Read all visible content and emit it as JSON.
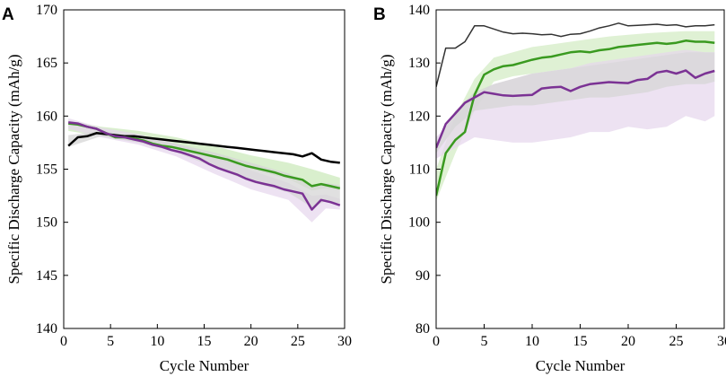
{
  "chart_data": [
    {
      "panel": "A",
      "type": "line",
      "xlabel": "Cycle Number",
      "ylabel": "Specific Discharge Capacity (mAh/g)",
      "xlim": [
        0,
        30
      ],
      "ylim": [
        140,
        170
      ],
      "xticks": [
        0,
        5,
        10,
        15,
        20,
        25,
        30
      ],
      "yticks": [
        140,
        145,
        150,
        155,
        160,
        165,
        170
      ],
      "grid": false,
      "legend": "none",
      "series": [
        {
          "name": "black",
          "color": "#000000",
          "x": [
            0.5,
            1.5,
            2.5,
            3.5,
            4.5,
            5.5,
            6.5,
            7.5,
            8.5,
            9.5,
            10.5,
            11.5,
            12.5,
            13.5,
            14.5,
            15.5,
            16.5,
            17.5,
            18.5,
            19.5,
            20.5,
            21.5,
            22.5,
            23.5,
            24.5,
            25.5,
            26.5,
            27.5,
            28.5,
            29.5
          ],
          "y": [
            157.2,
            158.0,
            158.1,
            158.4,
            158.3,
            158.2,
            158.1,
            158.1,
            158.0,
            157.9,
            157.8,
            157.7,
            157.6,
            157.5,
            157.4,
            157.3,
            157.2,
            157.1,
            157.0,
            156.9,
            156.8,
            156.7,
            156.6,
            156.5,
            156.4,
            156.2,
            156.5,
            155.9,
            155.7,
            155.6
          ]
        },
        {
          "name": "green",
          "color": "#3a9a20",
          "x": [
            0.5,
            1.5,
            2.5,
            3.5,
            4.5,
            5.5,
            6.5,
            7.5,
            8.5,
            9.5,
            10.5,
            11.5,
            12.5,
            13.5,
            14.5,
            15.5,
            16.5,
            17.5,
            18.5,
            19.5,
            20.5,
            21.5,
            22.5,
            23.5,
            24.5,
            25.5,
            26.5,
            27.5,
            28.5,
            29.5
          ],
          "y": [
            159.3,
            159.2,
            159.0,
            158.8,
            158.4,
            158.0,
            158.0,
            157.9,
            157.7,
            157.4,
            157.2,
            157.1,
            156.9,
            156.7,
            156.5,
            156.3,
            156.1,
            155.9,
            155.6,
            155.3,
            155.1,
            154.9,
            154.7,
            154.4,
            154.2,
            154.0,
            153.4,
            153.6,
            153.4,
            153.2
          ]
        },
        {
          "name": "purple",
          "color": "#7b3294",
          "x": [
            0.5,
            1.5,
            2.5,
            3.5,
            4.5,
            5.5,
            6.5,
            7.5,
            8.5,
            9.5,
            10.5,
            11.5,
            12.5,
            13.5,
            14.5,
            15.5,
            16.5,
            17.5,
            18.5,
            19.5,
            20.5,
            21.5,
            22.5,
            23.5,
            24.5,
            25.5,
            26.5,
            27.5,
            28.5,
            29.5
          ],
          "y": [
            159.4,
            159.3,
            159.0,
            158.8,
            158.4,
            158.1,
            158.0,
            157.8,
            157.6,
            157.3,
            157.1,
            156.8,
            156.6,
            156.3,
            156.0,
            155.5,
            155.1,
            154.8,
            154.5,
            154.1,
            153.8,
            153.6,
            153.4,
            153.1,
            152.9,
            152.7,
            151.2,
            152.1,
            151.9,
            151.6
          ]
        }
      ],
      "bands": [
        {
          "name": "green-range",
          "color": "#c9e8b8",
          "opacity": 0.7,
          "x": [
            0.5,
            4,
            8,
            12,
            16,
            20,
            24,
            26.5,
            28,
            29.5
          ],
          "low": [
            158.6,
            158.1,
            157.6,
            157.0,
            156.0,
            155.0,
            154.1,
            153.0,
            153.2,
            153.0
          ],
          "high": [
            159.6,
            159.0,
            158.6,
            158.0,
            157.2,
            156.3,
            155.6,
            155.0,
            154.6,
            154.2
          ]
        },
        {
          "name": "purple-range",
          "color": "#e6d5ec",
          "opacity": 0.7,
          "x": [
            0.5,
            4,
            8,
            12,
            16,
            20,
            24,
            26.5,
            28,
            29.5
          ],
          "low": [
            158.8,
            158.0,
            157.3,
            156.2,
            154.6,
            153.1,
            152.1,
            150.0,
            151.3,
            151.2
          ],
          "high": [
            159.8,
            158.9,
            158.3,
            157.4,
            156.2,
            154.9,
            153.7,
            152.5,
            152.6,
            152.2
          ]
        },
        {
          "name": "gray-range",
          "color": "#d6d6d6",
          "opacity": 0.75,
          "x": [
            0.5,
            4,
            8,
            12,
            16,
            20,
            24,
            26.5,
            28,
            29.5
          ],
          "low": [
            157.1,
            158.1,
            157.5,
            156.6,
            155.2,
            153.8,
            152.8,
            151.4,
            152.0,
            151.8
          ],
          "high": [
            158.2,
            158.6,
            158.0,
            157.4,
            156.6,
            155.6,
            154.6,
            153.5,
            153.7,
            153.5
          ]
        }
      ]
    },
    {
      "panel": "B",
      "type": "line",
      "xlabel": "Cycle Number",
      "ylabel": "Specific Discharge Capacity (mAh/g)",
      "xlim": [
        0,
        30
      ],
      "ylim": [
        80,
        140
      ],
      "xticks": [
        0,
        5,
        10,
        15,
        20,
        25,
        30
      ],
      "yticks": [
        80,
        90,
        100,
        110,
        120,
        130,
        140
      ],
      "grid": false,
      "legend": "none",
      "series": [
        {
          "name": "dark-gray",
          "color": "#333333",
          "x": [
            0,
            1,
            2,
            3,
            4,
            5,
            6,
            7,
            8,
            9,
            10,
            11,
            12,
            13,
            14,
            15,
            16,
            17,
            18,
            19,
            20,
            21,
            22,
            23,
            24,
            25,
            26,
            27,
            28,
            29
          ],
          "y": [
            125.5,
            132.8,
            132.8,
            134.0,
            137.0,
            137.0,
            136.4,
            135.8,
            135.5,
            135.6,
            135.5,
            135.3,
            135.4,
            135.0,
            135.4,
            135.5,
            136.0,
            136.6,
            137.0,
            137.5,
            137.0,
            137.1,
            137.2,
            137.3,
            137.1,
            137.2,
            136.8,
            137.0,
            137.0,
            137.2
          ]
        },
        {
          "name": "green",
          "color": "#3a9a20",
          "x": [
            0,
            1,
            2,
            3,
            4,
            5,
            6,
            7,
            8,
            9,
            10,
            11,
            12,
            13,
            14,
            15,
            16,
            17,
            18,
            19,
            20,
            21,
            22,
            23,
            24,
            25,
            26,
            27,
            28,
            29
          ],
          "y": [
            105.0,
            113.0,
            115.5,
            117.0,
            124.0,
            127.8,
            128.8,
            129.4,
            129.6,
            130.1,
            130.6,
            131.0,
            131.2,
            131.6,
            132.0,
            132.2,
            132.0,
            132.4,
            132.6,
            133.0,
            133.2,
            133.4,
            133.6,
            133.8,
            133.6,
            133.8,
            134.2,
            134.0,
            134.0,
            133.8
          ]
        },
        {
          "name": "purple",
          "color": "#7b3294",
          "x": [
            0,
            1,
            2,
            3,
            4,
            5,
            6,
            7,
            8,
            9,
            10,
            11,
            12,
            13,
            14,
            15,
            16,
            17,
            18,
            19,
            20,
            21,
            22,
            23,
            24,
            25,
            26,
            27,
            28,
            29
          ],
          "y": [
            114.0,
            118.5,
            120.5,
            122.5,
            123.5,
            124.5,
            124.2,
            123.9,
            123.8,
            123.9,
            124.0,
            125.2,
            125.4,
            125.5,
            124.7,
            125.5,
            126.0,
            126.2,
            126.4,
            126.3,
            126.2,
            126.8,
            127.0,
            128.2,
            128.5,
            128.0,
            128.6,
            127.2,
            128.0,
            128.5
          ]
        }
      ],
      "bands": [
        {
          "name": "green-range",
          "color": "#c9e8b8",
          "opacity": 0.6,
          "x": [
            0,
            2,
            4,
            6,
            8,
            10,
            12,
            14,
            16,
            18,
            20,
            22,
            24,
            26,
            28,
            29
          ],
          "low": [
            104.0,
            113.0,
            121.0,
            126.5,
            127.5,
            128.0,
            128.5,
            129.0,
            129.5,
            130.0,
            130.5,
            131.0,
            131.5,
            132.0,
            132.0,
            132.0
          ],
          "high": [
            110.0,
            120.0,
            127.0,
            131.0,
            132.0,
            133.0,
            133.5,
            134.0,
            134.5,
            135.0,
            135.3,
            135.6,
            135.8,
            136.0,
            136.0,
            136.0
          ]
        },
        {
          "name": "purple-range",
          "color": "#e6d5ec",
          "opacity": 0.7,
          "x": [
            0,
            2,
            4,
            6,
            8,
            10,
            12,
            14,
            16,
            18,
            20,
            22,
            24,
            26,
            28,
            29
          ],
          "low": [
            112.0,
            114.0,
            116.0,
            115.5,
            115.0,
            115.0,
            115.5,
            116.0,
            117.0,
            117.0,
            118.0,
            117.5,
            118.0,
            120.0,
            119.0,
            120.0
          ],
          "high": [
            116.0,
            120.0,
            124.0,
            126.0,
            127.0,
            128.0,
            128.5,
            129.0,
            130.0,
            130.5,
            131.0,
            131.5,
            132.0,
            132.5,
            132.0,
            132.0
          ]
        },
        {
          "name": "gray-range",
          "color": "#d6d6d6",
          "opacity": 0.75,
          "x": [
            0,
            2,
            4,
            6,
            8,
            10,
            12,
            14,
            16,
            18,
            20,
            22,
            24,
            26,
            28,
            29
          ],
          "low": [
            113.0,
            118.0,
            121.0,
            121.5,
            122.0,
            122.0,
            122.5,
            123.0,
            123.5,
            123.5,
            124.0,
            124.5,
            125.5,
            126.0,
            126.0,
            126.5
          ],
          "high": [
            115.0,
            121.0,
            124.5,
            126.0,
            127.0,
            128.0,
            128.5,
            129.0,
            129.5,
            130.0,
            130.5,
            131.0,
            131.5,
            132.0,
            132.0,
            132.0
          ]
        }
      ]
    }
  ]
}
